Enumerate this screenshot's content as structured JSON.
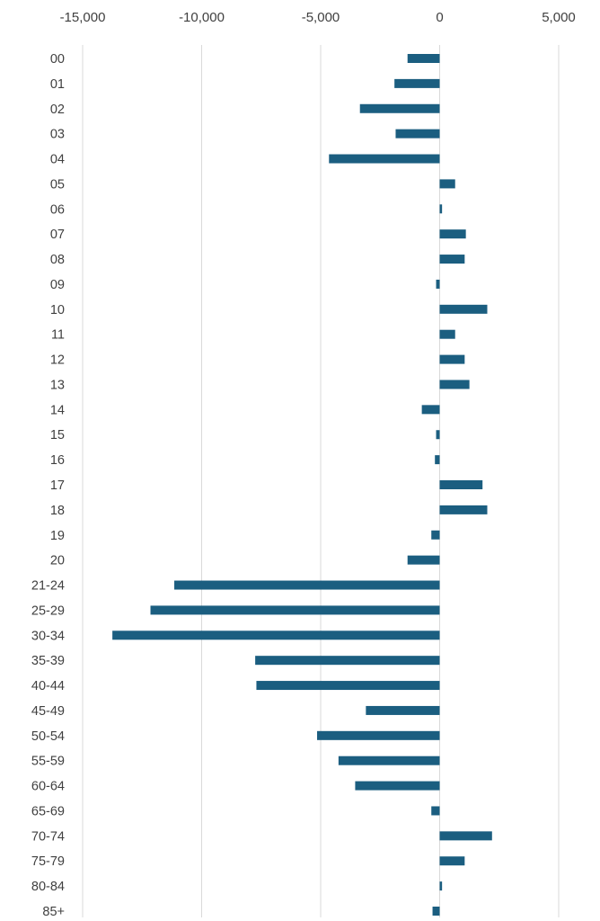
{
  "chart_data": {
    "type": "bar",
    "orientation": "horizontal",
    "title": "",
    "xlabel": "",
    "ylabel": "",
    "xlim": [
      -15000,
      5000
    ],
    "x_ticks": [
      -15000,
      -10000,
      -5000,
      0,
      5000
    ],
    "x_tick_labels": [
      "-15,000",
      "-10,000",
      "-5,000",
      "0",
      "5,000"
    ],
    "x_axis_position": "top",
    "grid": true,
    "legend": "none",
    "bar_color": "#1b5e80",
    "categories": [
      "00",
      "01",
      "02",
      "03",
      "04",
      "05",
      "06",
      "07",
      "08",
      "09",
      "10",
      "11",
      "12",
      "13",
      "14",
      "15",
      "16",
      "17",
      "18",
      "19",
      "20",
      "21-24",
      "25-29",
      "30-34",
      "35-39",
      "40-44",
      "45-49",
      "50-54",
      "55-59",
      "60-64",
      "65-69",
      "70-74",
      "75-79",
      "80-84",
      "85+"
    ],
    "values": [
      -1350,
      -1900,
      -3350,
      -1850,
      -4650,
      650,
      100,
      1100,
      1050,
      -150,
      2000,
      650,
      1050,
      1250,
      -750,
      -150,
      -200,
      1800,
      2000,
      -350,
      -1350,
      -11150,
      -12150,
      -13750,
      -7750,
      -7700,
      -3100,
      -5150,
      -4250,
      -3550,
      -350,
      2200,
      1050,
      100,
      -300
    ]
  }
}
